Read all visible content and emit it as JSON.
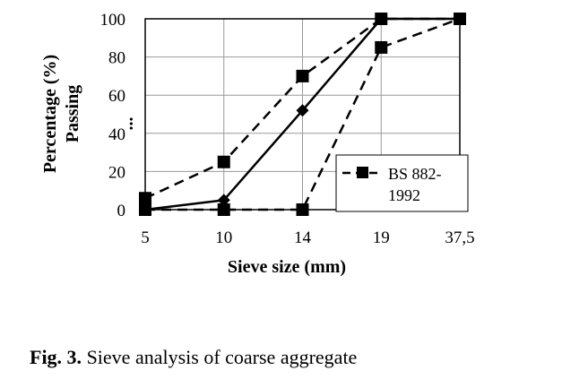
{
  "chart_data": {
    "type": "line",
    "categories": [
      "5",
      "10",
      "14",
      "19",
      "37,5"
    ],
    "ylim": [
      0,
      100
    ],
    "yticks": [
      "0",
      "20",
      "40",
      "60",
      "80",
      "100"
    ],
    "xlabel": "Sieve size (mm)",
    "ylabel_lines": [
      "Percentage (%)",
      "Passing",
      "..."
    ],
    "grid": true,
    "legend_position": "lower-right",
    "series": [
      {
        "key": "upper",
        "values": [
          6,
          25,
          70,
          100,
          100
        ],
        "style": "dashed",
        "marker": "square"
      },
      {
        "key": "lower",
        "values": [
          0,
          0,
          0,
          85,
          100
        ],
        "style": "dashed",
        "marker": "square"
      },
      {
        "key": "sample",
        "values": [
          0,
          5,
          52,
          100,
          100
        ],
        "style": "solid",
        "marker": "diamond"
      }
    ],
    "legend": [
      {
        "series": "lower",
        "label_lines": [
          "BS 882-",
          "1992"
        ]
      }
    ]
  },
  "caption": {
    "prefix": "Fig. 3.",
    "text": " Sieve analysis of coarse aggregate"
  }
}
